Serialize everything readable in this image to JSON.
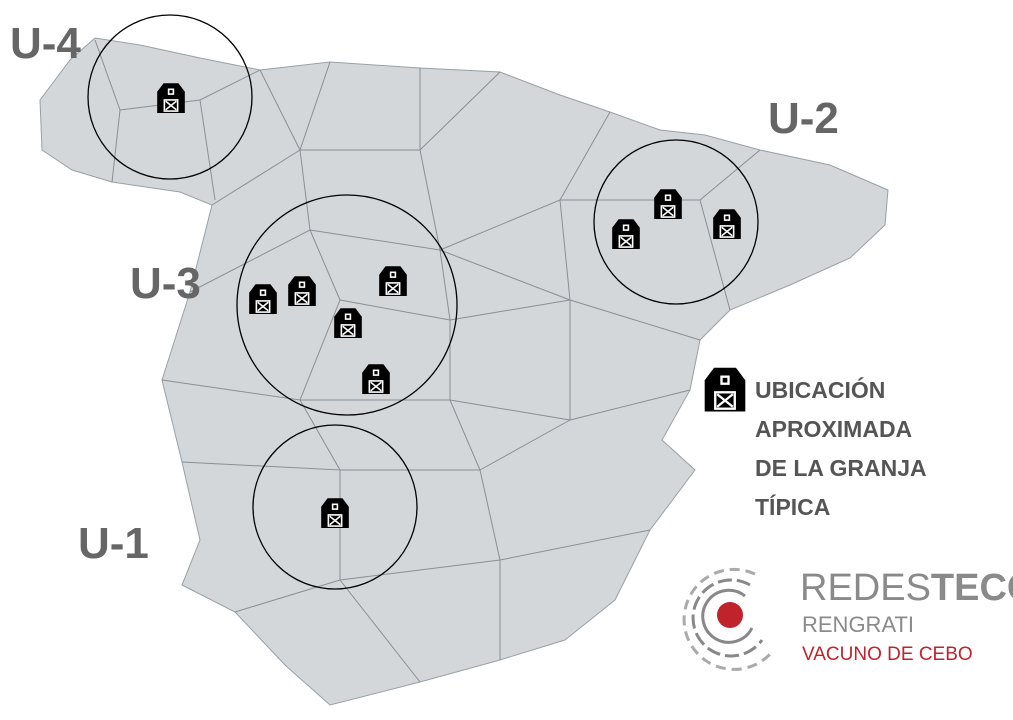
{
  "zones": [
    "U-4",
    "U-2",
    "U-3",
    "U-1"
  ],
  "legend": {
    "lines": [
      "UBICACIÓN",
      "APROXIMADA",
      "DE LA GRANJA",
      "TÍPICA"
    ]
  },
  "logo": {
    "name_light": "REDES",
    "name_bold": "TECO",
    "line1": "RENGRATI",
    "line2": "VACUNO DE CEBO"
  }
}
